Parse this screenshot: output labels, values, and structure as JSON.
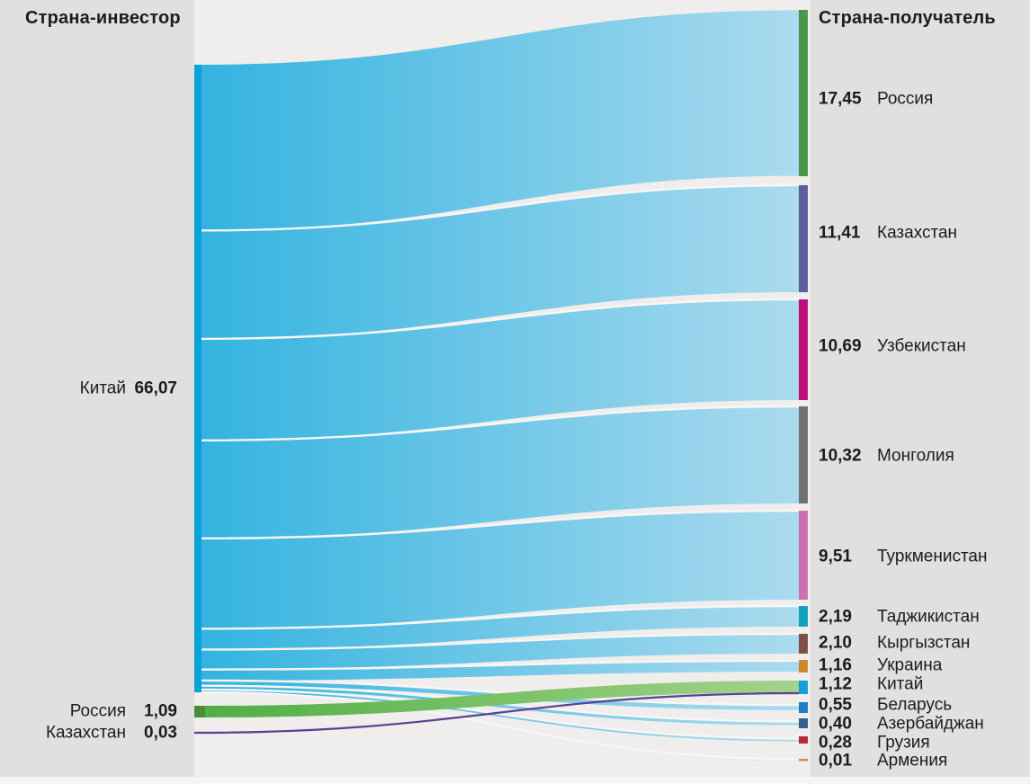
{
  "headers": {
    "left": "Страна-инвестор",
    "right": "Страна-получатель"
  },
  "chart_data": {
    "type": "sankey",
    "investors": [
      {
        "name": "Китай",
        "value": 66.07,
        "value_display": "66,07",
        "node_color": "#0aa3d6"
      },
      {
        "name": "Россия",
        "value": 1.09,
        "value_display": "1,09",
        "node_color": "#4a8c3a"
      },
      {
        "name": "Казахстан",
        "value": 0.03,
        "value_display": "0,03",
        "node_color": "#5b3f93"
      }
    ],
    "recipients": [
      {
        "name": "Россия",
        "value": 17.45,
        "value_display": "17,45",
        "color": "#4a9749"
      },
      {
        "name": "Казахстан",
        "value": 11.41,
        "value_display": "11,41",
        "color": "#5d5e9e"
      },
      {
        "name": "Узбекистан",
        "value": 10.69,
        "value_display": "10,69",
        "color": "#c00d7c"
      },
      {
        "name": "Монголия",
        "value": 10.32,
        "value_display": "10,32",
        "color": "#707173"
      },
      {
        "name": "Туркменистан",
        "value": 9.51,
        "value_display": "9,51",
        "color": "#cf70ae"
      },
      {
        "name": "Таджикистан",
        "value": 2.19,
        "value_display": "2,19",
        "color": "#12a1bb"
      },
      {
        "name": "Кыргызстан",
        "value": 2.1,
        "value_display": "2,10",
        "color": "#7e5044"
      },
      {
        "name": "Украина",
        "value": 1.16,
        "value_display": "1,16",
        "color": "#c8892b"
      },
      {
        "name": "Китай",
        "value": 1.12,
        "value_display": "1,12",
        "color": "#179cd8"
      },
      {
        "name": "Беларусь",
        "value": 0.55,
        "value_display": "0,55",
        "color": "#1b7ec4"
      },
      {
        "name": "Азербайджан",
        "value": 0.4,
        "value_display": "0,40",
        "color": "#32618f"
      },
      {
        "name": "Грузия",
        "value": 0.28,
        "value_display": "0,28",
        "color": "#b2293a"
      },
      {
        "name": "Армения",
        "value": 0.01,
        "value_display": "0,01",
        "color": "#cc8a60"
      }
    ],
    "links": [
      {
        "source": "Китай",
        "target": "Россия",
        "value": 17.45
      },
      {
        "source": "Китай",
        "target": "Казахстан",
        "value": 11.41
      },
      {
        "source": "Китай",
        "target": "Узбекистан",
        "value": 10.69
      },
      {
        "source": "Китай",
        "target": "Монголия",
        "value": 10.32
      },
      {
        "source": "Китай",
        "target": "Туркменистан",
        "value": 9.51
      },
      {
        "source": "Китай",
        "target": "Таджикистан",
        "value": 2.19
      },
      {
        "source": "Китай",
        "target": "Кыргызстан",
        "value": 2.1
      },
      {
        "source": "Китай",
        "target": "Украина",
        "value": 1.16
      },
      {
        "source": "Китай",
        "target": "Беларусь",
        "value": 0.55
      },
      {
        "source": "Китай",
        "target": "Азербайджан",
        "value": 0.4
      },
      {
        "source": "Китай",
        "target": "Грузия",
        "value": 0.28
      },
      {
        "source": "Китай",
        "target": "Армения",
        "value": 0.01
      },
      {
        "source": "Россия",
        "target": "Китай",
        "value": 1.09
      },
      {
        "source": "Казахстан",
        "target": "Китай",
        "value": 0.03
      }
    ],
    "palette": {
      "panel_bg": "#e1e0de",
      "canvas_bg": "#efeeec",
      "bottom_strip": "#f6f5f3",
      "separator": "#f7f6f4",
      "text": "#1c1c1a",
      "china_flow_from": "#33b3e0",
      "china_flow_to": "#abdbee",
      "russia_flow_from": "#52ae45",
      "russia_flow_to": "#a2d489",
      "kazakhstan_line": "#5b3f93"
    }
  }
}
